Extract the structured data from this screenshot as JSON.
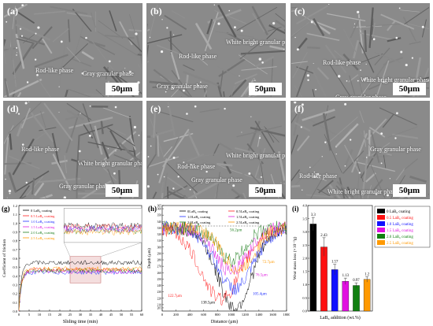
{
  "panels": [
    {
      "label": "(a)",
      "scale": "50μm",
      "annotations": [
        "Rod-like phase",
        "Gray granular phase"
      ]
    },
    {
      "label": "(b)",
      "scale": "50μm",
      "annotations": [
        "Rod-like phase",
        "White bright granular phase",
        "Gray granular phase"
      ]
    },
    {
      "label": "(c)",
      "scale": "50μm",
      "annotations": [
        "Rod-like phase",
        "White bright granular phase",
        "Gray granular phase"
      ]
    },
    {
      "label": "(d)",
      "scale": "50μm",
      "annotations": [
        "Rod-like phase",
        "White bright granular phase",
        "Gray granular phase"
      ]
    },
    {
      "label": "(e)",
      "scale": "50μm",
      "annotations": [
        "Rod-like phase",
        "White bright granular phase",
        "Gray granular phase"
      ]
    },
    {
      "label": "(f)",
      "scale": "50μm",
      "annotations": [
        "Gray granular phase",
        "Rod-like phase",
        "White bright granular phase"
      ]
    }
  ],
  "chart_data": [
    {
      "panel": "(g)",
      "type": "line",
      "xlabel": "Sliding time (min)",
      "ylabel": "Coefficient of friction",
      "xlim": [
        0,
        60
      ],
      "ylim": [
        0.0,
        1.2
      ],
      "xticks": [
        "0",
        "5",
        "10",
        "15",
        "20",
        "25",
        "30",
        "35",
        "40",
        "45",
        "50",
        "55",
        "60"
      ],
      "yticks": [
        "0.0",
        "0.1",
        "0.2",
        "0.3",
        "0.4",
        "0.5",
        "0.6",
        "0.7",
        "0.8",
        "0.9",
        "1.0",
        "1.1",
        "1.2"
      ],
      "series": [
        {
          "name": "0 LaB₆ coating",
          "color": "#000000",
          "level": 0.55
        },
        {
          "name": "0.5 LaB₆ coating",
          "color": "#ff2020",
          "level": 0.47
        },
        {
          "name": "1.0 LaB₆ coating",
          "color": "#2030ff",
          "level": 0.44
        },
        {
          "name": "1.5 LaB₆ coating",
          "color": "#e020e0",
          "level": 0.45
        },
        {
          "name": "2.0 LaB₆ coating",
          "color": "#208020",
          "level": 0.46
        },
        {
          "name": "2.5 LaB₆ coating",
          "color": "#ff9900",
          "level": 0.48
        }
      ]
    },
    {
      "panel": "(h)",
      "type": "line",
      "xlabel": "Distance (μm)",
      "ylabel": "Depth (μm)",
      "xlim": [
        0,
        1800
      ],
      "ylim": [
        200,
        365
      ],
      "xticks": [
        "0",
        "200",
        "400",
        "600",
        "800",
        "1000",
        "1200",
        "1400",
        "1600",
        "1800"
      ],
      "yticks": [
        "205",
        "210",
        "220",
        "230",
        "240",
        "250",
        "260",
        "270",
        "280",
        "290",
        "300",
        "310",
        "320",
        "330",
        "340",
        "350",
        "360",
        "365"
      ],
      "series": [
        {
          "name": "0LaB₆ coating",
          "color": "#000000",
          "min_depth": 138.5
        },
        {
          "name": "0.5LaB₆ coating",
          "color": "#ff2020",
          "min_depth": 122.7
        },
        {
          "name": "1.0LaB₆ coating",
          "color": "#2030ff",
          "min_depth": 105.4
        },
        {
          "name": "1.5LaB₆ coating",
          "color": "#e020e0",
          "min_depth": 76.5
        },
        {
          "name": "2.0LaB₆ coating",
          "color": "#208020",
          "min_depth": 56.2
        },
        {
          "name": "2.5LaB₆ coating",
          "color": "#ff9900",
          "min_depth": 72.7
        }
      ],
      "annotations": [
        "138.5μm",
        "122.7μm",
        "105.4μm",
        "76.5μm",
        "56.2μm",
        "72.7μm"
      ]
    },
    {
      "panel": "(i)",
      "type": "bar",
      "xlabel": "LaB₆ addition (wt.%)",
      "ylabel": "Wear mass loss (×10⁻³g)",
      "ylim": [
        0,
        4
      ],
      "yticks": [
        "0.0",
        "0.5",
        "1.0",
        "1.5",
        "2.0",
        "2.5",
        "3.0",
        "3.5",
        "4.0"
      ],
      "categories": [
        "0",
        "0.5",
        "1.0",
        "1.5",
        "2.0",
        "2.5"
      ],
      "values": [
        3.3,
        2.43,
        1.57,
        1.13,
        0.97,
        1.2
      ],
      "value_labels": [
        "3.3",
        "2.43",
        "1.57",
        "1.13",
        "0.97",
        "1.2"
      ],
      "errors": [
        0.25,
        0.35,
        0.2,
        0.12,
        0.1,
        0.1
      ],
      "colors": [
        "#000000",
        "#ff1010",
        "#1010ff",
        "#e010e0",
        "#108010",
        "#ff9900"
      ],
      "legend": [
        "0 LaB₆ coating",
        "0.5 LaB₆ coating",
        "1.0 LaB₆ coating",
        "1.5 LaB₆ coating",
        "2.0 LaB₆ coating",
        "2.5 LaB₆ coating"
      ],
      "legend_position": "top-right"
    }
  ]
}
